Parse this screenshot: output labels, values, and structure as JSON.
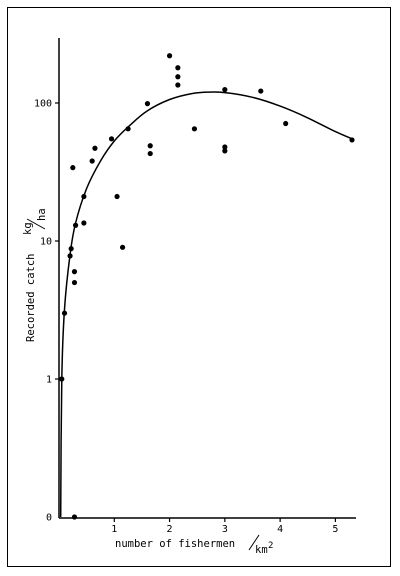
{
  "chart_data": {
    "type": "scatter",
    "title": "",
    "xlabel": "number of fishermen",
    "xunit": "km",
    "xunit_sup": "2",
    "ylabel": "Recorded catch",
    "yunit_top": "kg",
    "yunit_bottom": "ha",
    "y_scale": "log",
    "xlim": [
      0,
      5.3
    ],
    "x_ticks": [
      1,
      2,
      3,
      4,
      5
    ],
    "x_tick_labels": [
      "1",
      "2",
      "3",
      "4",
      "5"
    ],
    "y_ticks": [
      0.1,
      1,
      10,
      100
    ],
    "y_tick_labels": [
      "0",
      "1",
      "10",
      "100"
    ],
    "grid": false,
    "points": [
      {
        "x": 0.05,
        "y": 1.0
      },
      {
        "x": 0.1,
        "y": 3.0
      },
      {
        "x": 0.2,
        "y": 7.8
      },
      {
        "x": 0.22,
        "y": 8.8
      },
      {
        "x": 0.28,
        "y": 5.0
      },
      {
        "x": 0.28,
        "y": 6.0
      },
      {
        "x": 0.28,
        "y": 0.1
      },
      {
        "x": 0.25,
        "y": 34
      },
      {
        "x": 0.3,
        "y": 13
      },
      {
        "x": 0.45,
        "y": 21
      },
      {
        "x": 0.45,
        "y": 13.5
      },
      {
        "x": 0.6,
        "y": 38
      },
      {
        "x": 0.65,
        "y": 47
      },
      {
        "x": 0.95,
        "y": 55
      },
      {
        "x": 1.05,
        "y": 21
      },
      {
        "x": 1.15,
        "y": 9.0
      },
      {
        "x": 1.25,
        "y": 65
      },
      {
        "x": 1.6,
        "y": 99
      },
      {
        "x": 1.65,
        "y": 43
      },
      {
        "x": 1.65,
        "y": 49
      },
      {
        "x": 2.0,
        "y": 220
      },
      {
        "x": 2.15,
        "y": 180
      },
      {
        "x": 2.15,
        "y": 155
      },
      {
        "x": 2.15,
        "y": 135
      },
      {
        "x": 2.45,
        "y": 65
      },
      {
        "x": 3.0,
        "y": 125
      },
      {
        "x": 3.0,
        "y": 48
      },
      {
        "x": 3.0,
        "y": 45
      },
      {
        "x": 3.65,
        "y": 122
      },
      {
        "x": 4.1,
        "y": 71
      },
      {
        "x": 5.3,
        "y": 54
      }
    ],
    "fit_curve": [
      {
        "x": 0.03,
        "y": 0.1
      },
      {
        "x": 0.05,
        "y": 1.0
      },
      {
        "x": 0.1,
        "y": 3.2
      },
      {
        "x": 0.2,
        "y": 8.0
      },
      {
        "x": 0.3,
        "y": 13.5
      },
      {
        "x": 0.5,
        "y": 24
      },
      {
        "x": 0.75,
        "y": 38
      },
      {
        "x": 1.0,
        "y": 53
      },
      {
        "x": 1.3,
        "y": 70
      },
      {
        "x": 1.6,
        "y": 88
      },
      {
        "x": 2.0,
        "y": 106
      },
      {
        "x": 2.4,
        "y": 117
      },
      {
        "x": 2.7,
        "y": 120
      },
      {
        "x": 3.0,
        "y": 119
      },
      {
        "x": 3.5,
        "y": 110
      },
      {
        "x": 4.0,
        "y": 95
      },
      {
        "x": 4.5,
        "y": 78
      },
      {
        "x": 5.0,
        "y": 62
      },
      {
        "x": 5.3,
        "y": 55
      }
    ]
  }
}
